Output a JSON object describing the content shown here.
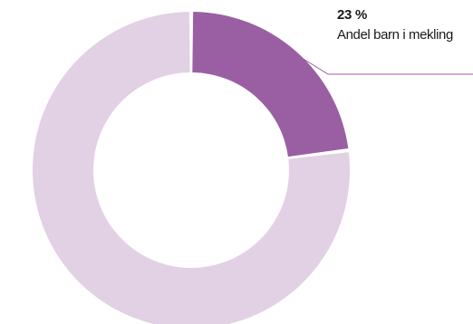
{
  "chart_data": {
    "type": "pie",
    "donut": true,
    "slices": [
      {
        "label": "Andel barn i mekling",
        "value": 23,
        "value_label": "23 %",
        "color": "#9a5fa3"
      },
      {
        "label": "",
        "value": 77,
        "color": "#e2d0e4"
      }
    ]
  }
}
